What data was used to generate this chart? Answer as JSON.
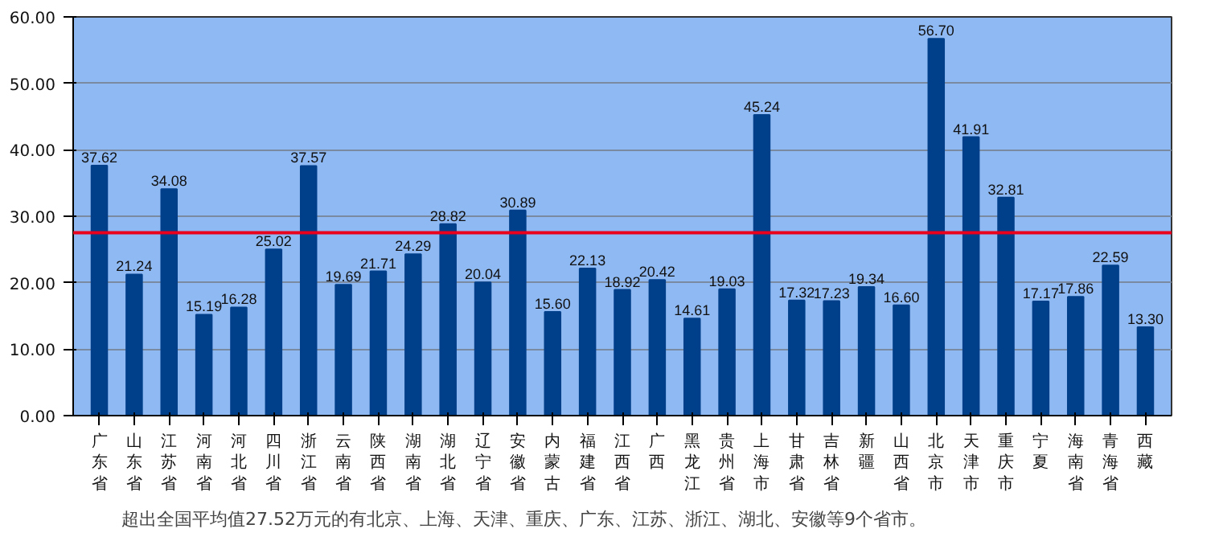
{
  "chart_data": {
    "type": "bar",
    "categories": [
      "广东省",
      "山东省",
      "江苏省",
      "河南省",
      "河北省",
      "四川省",
      "浙江省",
      "云南省",
      "陕西省",
      "湖南省",
      "湖北省",
      "辽宁省",
      "安徽省",
      "内蒙古",
      "福建省",
      "江西省",
      "广西",
      "黑龙江",
      "贵州省",
      "上海市",
      "甘肃省",
      "吉林省",
      "新疆",
      "山西省",
      "北京市",
      "天津市",
      "重庆市",
      "宁夏",
      "海南省",
      "青海省",
      "西藏"
    ],
    "values": [
      37.62,
      21.24,
      34.08,
      15.19,
      16.28,
      25.02,
      37.57,
      19.69,
      21.71,
      24.29,
      28.82,
      20.04,
      30.89,
      15.6,
      22.13,
      18.92,
      20.42,
      14.61,
      19.03,
      45.24,
      17.32,
      17.23,
      19.34,
      16.6,
      56.7,
      41.91,
      32.81,
      17.17,
      17.86,
      22.59,
      13.3
    ],
    "value_labels": [
      "37.62",
      "21.24",
      "34.08",
      "15.19",
      "16.28",
      "25.02",
      "37.57",
      "19.69",
      "21.71",
      "24.29",
      "28.82",
      "20.04",
      "30.89",
      "15.60",
      "22.13",
      "18.92",
      "20.42",
      "14.61",
      "19.03",
      "45.24",
      "17.32",
      "17.23",
      "19.34",
      "16.60",
      "56.70",
      "41.91",
      "32.81",
      "17.17",
      "17.86",
      "22.59",
      "13.30"
    ],
    "color": "#003f8a",
    "ylim": [
      0,
      60
    ],
    "yticks": [
      {
        "value": 0,
        "label": "0.00"
      },
      {
        "value": 10,
        "label": "10.00"
      },
      {
        "value": 20,
        "label": "20.00"
      },
      {
        "value": 30,
        "label": "30.00"
      },
      {
        "value": 40,
        "label": "40.00"
      },
      {
        "value": 50,
        "label": "50.00"
      },
      {
        "value": 60,
        "label": "60.00"
      }
    ],
    "grid": "y",
    "ref_lines": [
      {
        "axis": "y",
        "value": 27.52,
        "label": null,
        "color": "#e8001c",
        "line_style": "solid"
      }
    ],
    "annotations": [
      "超出全国平均值27.52万元的有北京、上海、天津、重庆、广东、江苏、浙江、湖北、安徽等9个省市。"
    ]
  }
}
